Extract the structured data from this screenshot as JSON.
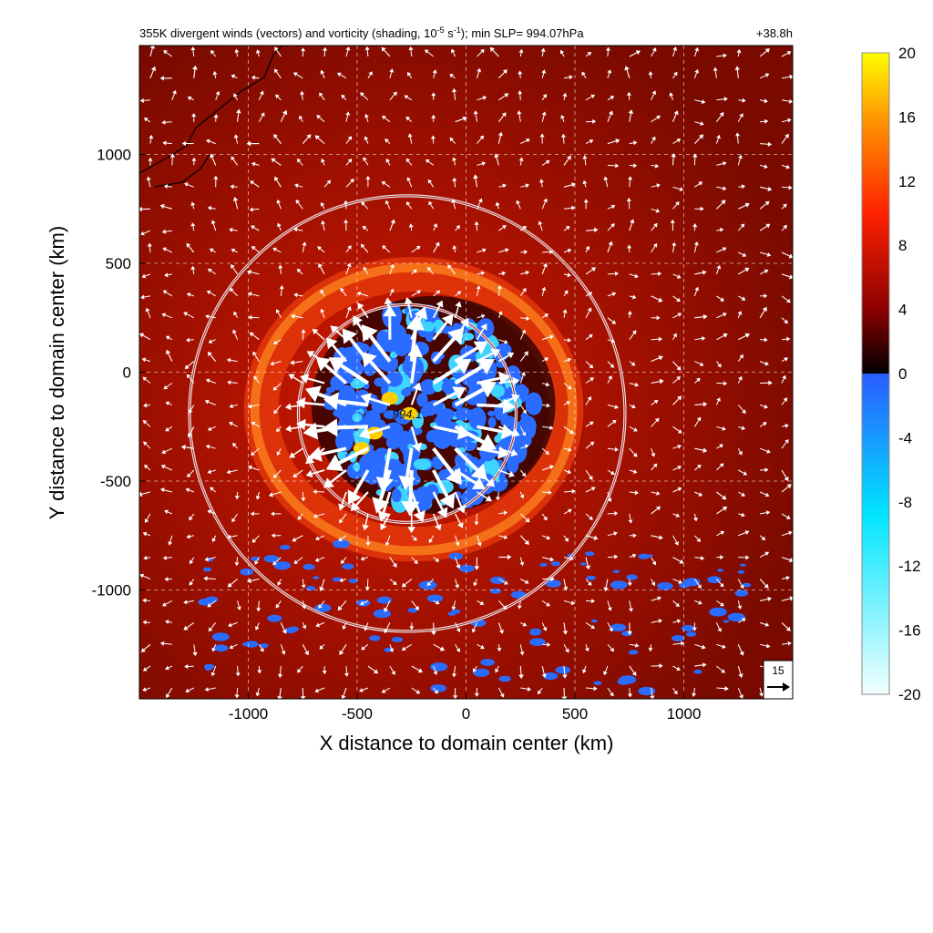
{
  "chart_data": {
    "type": "heatmap",
    "title_left": "355K divergent winds (vectors) and vorticity (shading, 10",
    "title_exp1": "-5",
    "title_mid": " s",
    "title_exp2": "-1",
    "title_tail": "); min SLP= 994.07hPa",
    "time_label": "+38.8h",
    "xlabel": "X distance to domain center (km)",
    "ylabel": "Y distance to domain center (km)",
    "xlim": [
      -1500,
      1500
    ],
    "ylim": [
      -1500,
      1500
    ],
    "xticks": [
      -1000,
      -500,
      0,
      500,
      1000
    ],
    "yticks": [
      1000,
      500,
      0,
      -500,
      -1000
    ],
    "xtick_labels": [
      "-1000",
      "-500",
      "0",
      "500",
      "1000"
    ],
    "ytick_labels": [
      "1000",
      "500",
      "0",
      "-500",
      "-1000"
    ],
    "grid": true,
    "min_slp_label": "994.1",
    "min_slp_center": [
      -270,
      -190
    ],
    "rings": [
      {
        "cx": -270,
        "cy": -190,
        "r": 500
      },
      {
        "cx": -270,
        "cy": -190,
        "r": 1000
      }
    ],
    "reference_vector": {
      "label": "15",
      "value": 15
    },
    "colorbar": {
      "range": [
        -20,
        20
      ],
      "tick_labels": [
        "20",
        "16",
        "12",
        "8",
        "4",
        "0",
        "-4",
        "-8",
        "-12",
        "-16",
        "-20"
      ],
      "tick_values": [
        20,
        16,
        12,
        8,
        4,
        0,
        -4,
        -8,
        -12,
        -16,
        -20
      ]
    },
    "colors": {
      "positive_low": "#000000",
      "positive_mid": "#8b0000",
      "positive_high": "#ff2200",
      "positive_max": "#ffff00",
      "negative_low": "#2a5cff",
      "negative_mid": "#00e5ff",
      "negative_max": "#f4ffff",
      "vector": "#ffffff"
    }
  }
}
